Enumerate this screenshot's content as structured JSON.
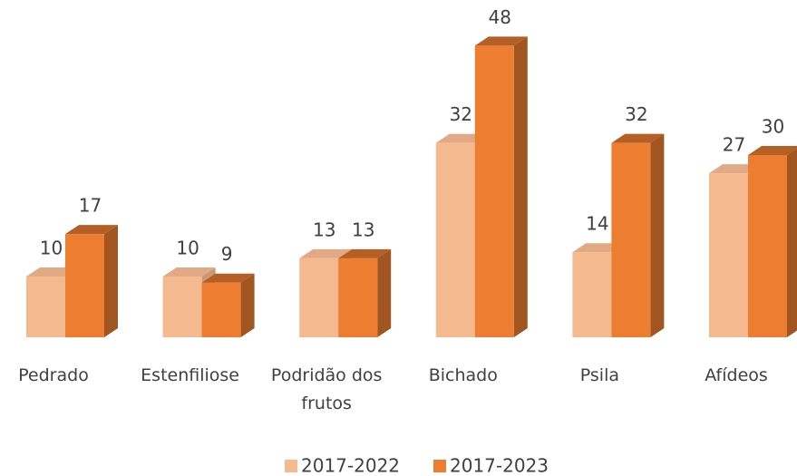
{
  "chart_data": {
    "type": "bar3d",
    "categories": [
      "Pedrado",
      "Estenfiliose",
      "Podridão dos frutos",
      "Bichado",
      "Psila",
      "Afídeos"
    ],
    "series": [
      {
        "name": "2017-2022",
        "color": "#f5b98f",
        "values": [
          10,
          10,
          13,
          32,
          14,
          27
        ]
      },
      {
        "name": "2017-2023",
        "color": "#ed7d31",
        "values": [
          17,
          9,
          13,
          48,
          32,
          30
        ]
      }
    ],
    "legend": "bottom"
  }
}
